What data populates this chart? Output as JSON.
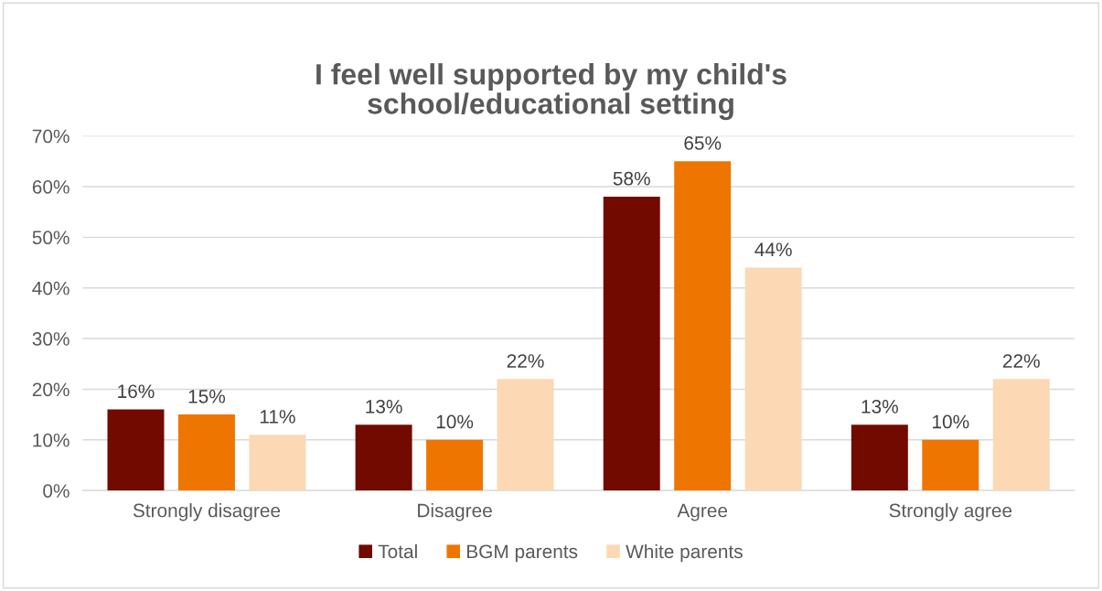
{
  "chart_data": {
    "type": "bar",
    "title": "I feel well supported by my child's\nschool/educational setting",
    "categories": [
      "Strongly disagree",
      "Disagree",
      "Agree",
      "Strongly agree"
    ],
    "series": [
      {
        "name": "Total",
        "color": "#720a00",
        "values": [
          16,
          13,
          58,
          13
        ],
        "value_labels": [
          "16%",
          "13%",
          "58%",
          "13%"
        ]
      },
      {
        "name": "BGM parents",
        "color": "#ee7600",
        "values": [
          15,
          10,
          65,
          10
        ],
        "value_labels": [
          "15%",
          "10%",
          "65%",
          "10%"
        ]
      },
      {
        "name": "White parents",
        "color": "#fdd8b5",
        "values": [
          11,
          22,
          44,
          22
        ],
        "value_labels": [
          "11%",
          "22%",
          "44%",
          "22%"
        ]
      }
    ],
    "ylim": [
      0,
      70
    ],
    "yticks": [
      {
        "value": 0,
        "label": "0%"
      },
      {
        "value": 10,
        "label": "10%"
      },
      {
        "value": 20,
        "label": "20%"
      },
      {
        "value": 30,
        "label": "30%"
      },
      {
        "value": 40,
        "label": "40%"
      },
      {
        "value": 50,
        "label": "50%"
      },
      {
        "value": 60,
        "label": "60%"
      },
      {
        "value": 70,
        "label": "70%"
      }
    ],
    "grid": "y",
    "legend": "bottom"
  }
}
